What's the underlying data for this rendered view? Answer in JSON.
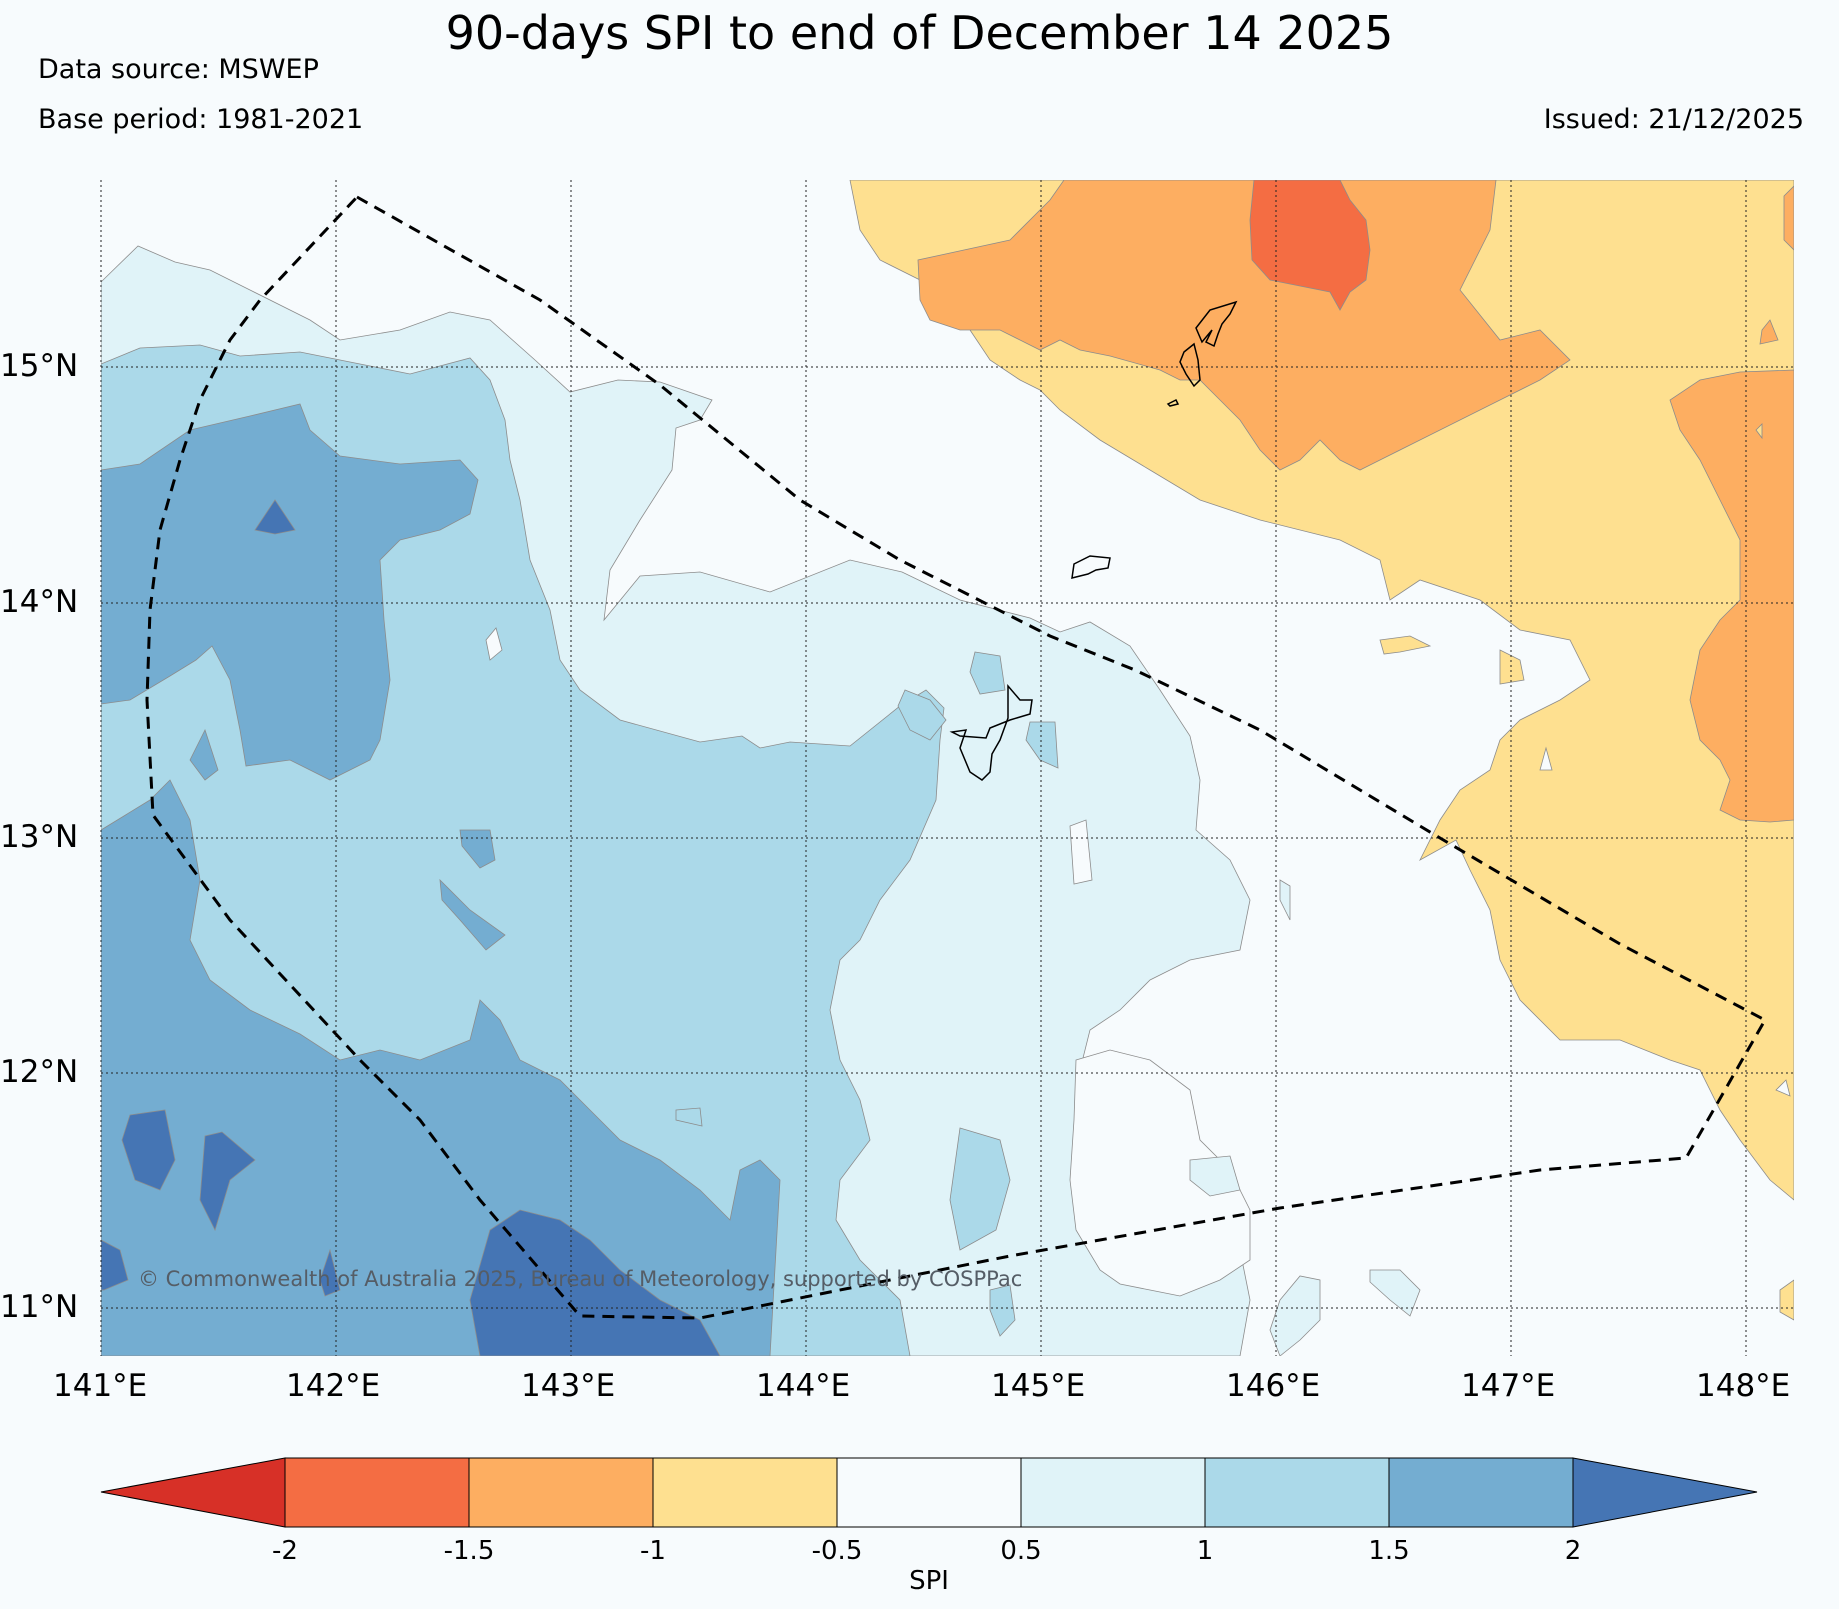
{
  "title": "90-days SPI to end of December 14 2025",
  "data_source": "Data source: MSWEP",
  "base_period": "Base period: 1981-2021",
  "issued": "Issued: 21/12/2025",
  "copyright": "© Commonwealth of Australia 2025, Bureau of Meteorology, supported by COSPPac",
  "map": {
    "lon_range": [
      141,
      148.2
    ],
    "lat_range": [
      10.8,
      15.8
    ],
    "lon_ticks": [
      "141°E",
      "142°E",
      "143°E",
      "144°E",
      "145°E",
      "146°E",
      "147°E",
      "148°E"
    ],
    "lat_ticks": [
      "15°N",
      "14°N",
      "13°N",
      "12°N",
      "11°N"
    ]
  },
  "colorbar": {
    "label": "SPI",
    "ticks": [
      "-2",
      "-1.5",
      "-1",
      "-0.5",
      "0.5",
      "1",
      "1.5",
      "2"
    ],
    "colors": [
      "#d73027",
      "#f46d43",
      "#fdae61",
      "#fee090",
      "#f7fbfd",
      "#e0f3f8",
      "#abd9e9",
      "#74add1",
      "#4575b4"
    ]
  },
  "colors": {
    "extreme_dry": "#d73027",
    "very_dry": "#f46d43",
    "moderately_dry": "#fdae61",
    "mildly_dry": "#fee090",
    "near_normal": "#f7fbfd",
    "mildly_wet": "#e0f3f8",
    "moderately_wet": "#abd9e9",
    "very_wet": "#74add1",
    "extreme_wet": "#4575b4"
  }
}
